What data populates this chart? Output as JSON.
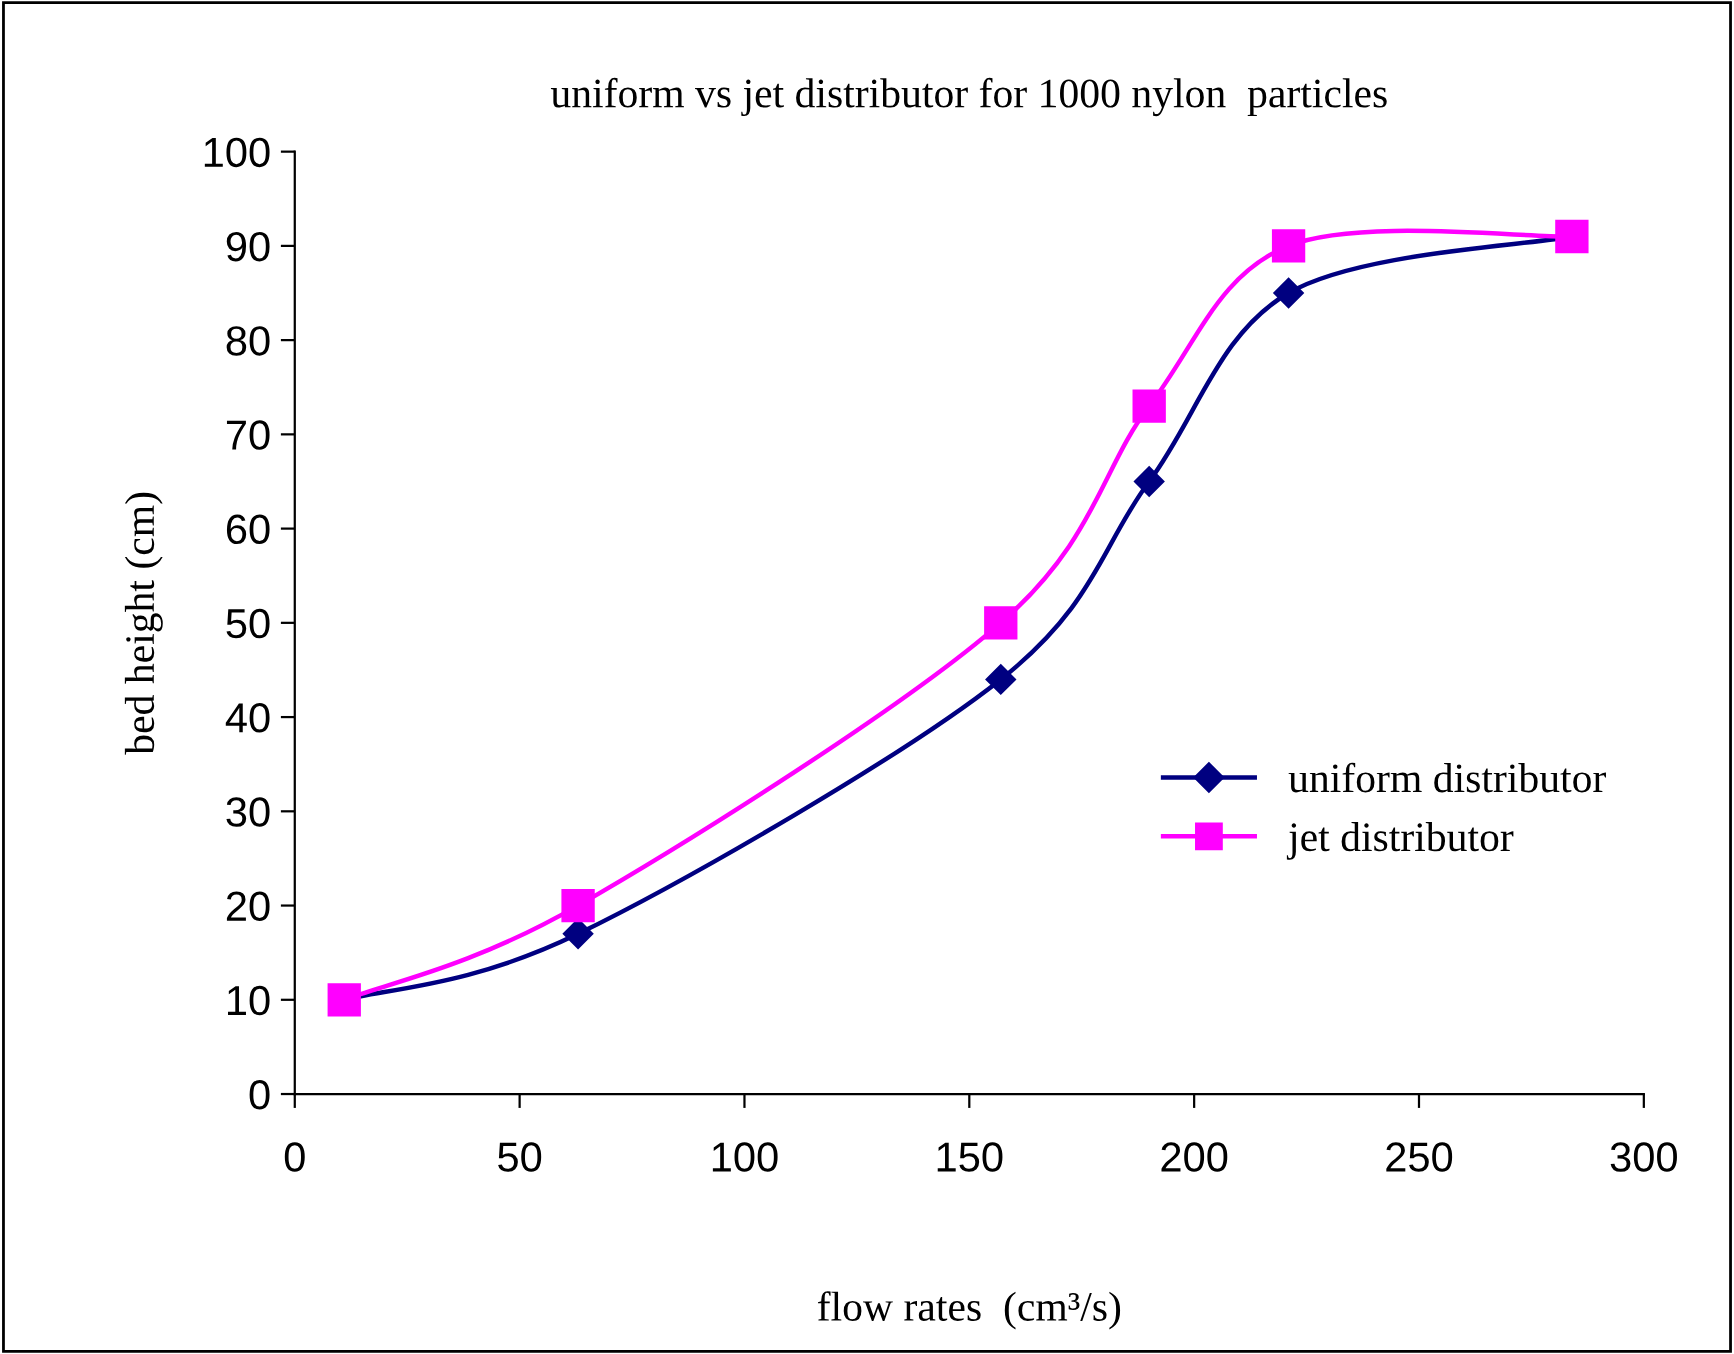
{
  "chart_data": {
    "type": "line",
    "title": "uniform vs jet distributor for 1000 nylon  particles",
    "xlabel": "flow rates  (cm³/s)",
    "ylabel": "bed height (cm)",
    "series": [
      {
        "name": "uniform distributor",
        "color": "#000080",
        "marker": "diamond",
        "x": [
          11,
          63,
          157,
          190,
          221,
          284
        ],
        "values": [
          10,
          17,
          44,
          65,
          85,
          91
        ]
      },
      {
        "name": "jet distributor",
        "color": "#ff00ff",
        "marker": "square",
        "x": [
          11,
          63,
          157,
          190,
          221,
          284
        ],
        "values": [
          10,
          20,
          50,
          73,
          90,
          91
        ]
      }
    ],
    "xlim": [
      0,
      300
    ],
    "xticks": [
      0,
      50,
      100,
      150,
      200,
      250,
      300
    ],
    "ylim": [
      0,
      100
    ],
    "yticks": [
      0,
      10,
      20,
      30,
      40,
      50,
      60,
      70,
      80,
      90,
      100
    ],
    "grid": false,
    "legend": "right",
    "line_style": "solid"
  }
}
